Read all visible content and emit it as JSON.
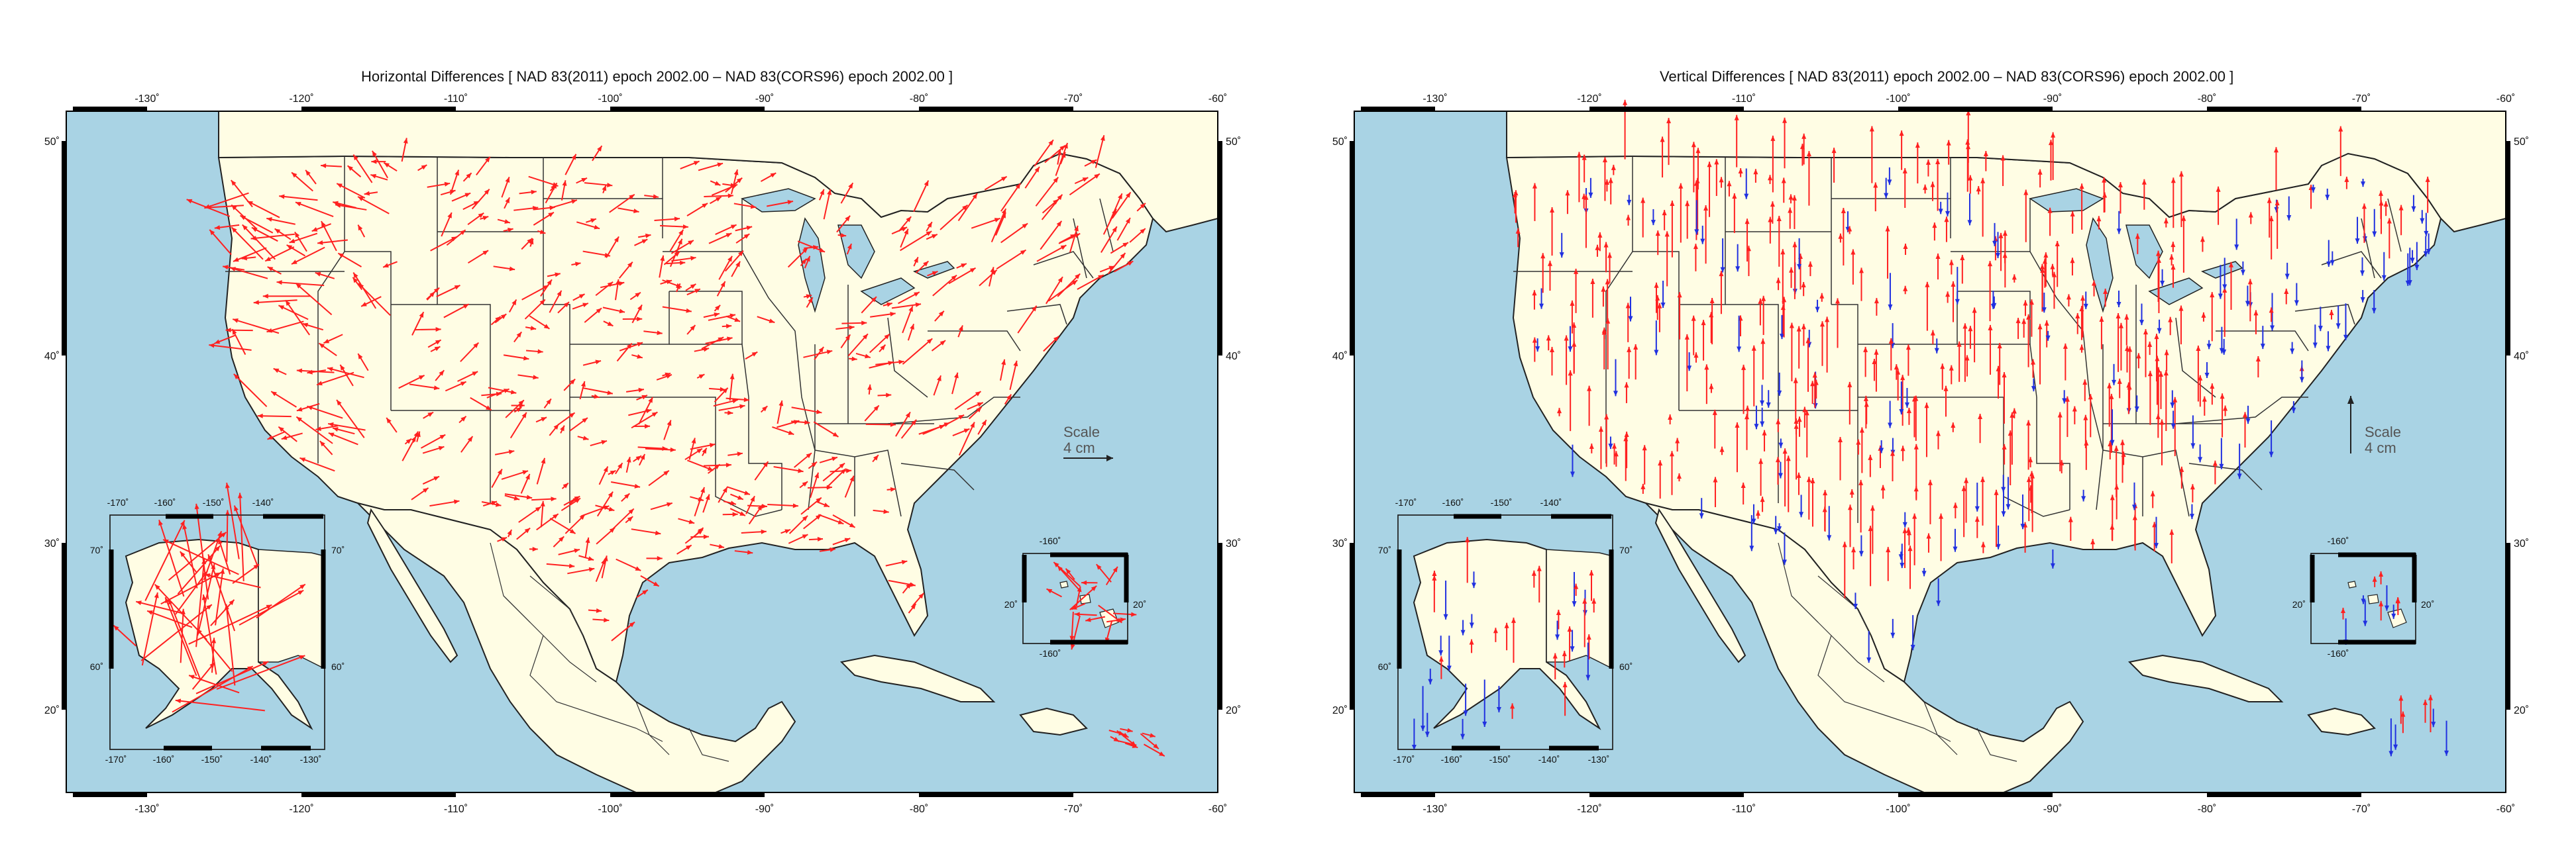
{
  "colors": {
    "ocean": "#a9d3e4",
    "land": "#fffde4",
    "border": "#222222",
    "frame": "#000000",
    "horizontal_vector": "#ff2020",
    "vertical_up": "#ff2020",
    "vertical_down": "#2030e0",
    "scale_text": "#555555"
  },
  "panels": [
    {
      "id": "horizontal",
      "title": "Horizontal Differences [ NAD 83(2011) epoch 2002.00 – NAD 83(CORS96) epoch 2002.00 ]",
      "scale": {
        "label": "Scale",
        "value": "4 cm",
        "orientation": "horizontal"
      },
      "vector_type": "horizontal"
    },
    {
      "id": "vertical",
      "title": "Vertical Differences [ NAD 83(2011) epoch 2002.00 – NAD 83(CORS96) epoch 2002.00 ]",
      "scale": {
        "label": "Scale",
        "value": "4 cm",
        "orientation": "vertical"
      },
      "vector_type": "vertical"
    }
  ],
  "main_map": {
    "top_ticks": [
      "-130˚",
      "-120˚",
      "-110˚",
      "-100˚",
      "-90˚",
      "-80˚",
      "-70˚",
      "-60˚"
    ],
    "bottom_ticks": [
      "-130˚",
      "-120˚",
      "-110˚",
      "-100˚",
      "-90˚",
      "-80˚",
      "-70˚",
      "-60˚"
    ],
    "left_ticks": [
      "50˚",
      "40˚",
      "30˚",
      "20˚"
    ],
    "right_ticks": [
      "50˚",
      "40˚",
      "30˚",
      "20˚"
    ]
  },
  "alaska_inset": {
    "top_ticks": [
      "-170˚",
      "-160˚",
      "-150˚",
      "-140˚"
    ],
    "bottom_ticks": [
      "-170˚",
      "-160˚",
      "-150˚",
      "-140˚",
      "-130˚"
    ],
    "left_ticks": [
      "70˚",
      "60˚"
    ],
    "right_ticks": [
      "70˚",
      "60˚"
    ]
  },
  "hawaii_inset": {
    "top_ticks": [
      "-160˚"
    ],
    "bottom_ticks": [
      "-160˚"
    ],
    "left_ticks": [
      "20˚"
    ],
    "right_ticks": [
      "20˚"
    ]
  }
}
